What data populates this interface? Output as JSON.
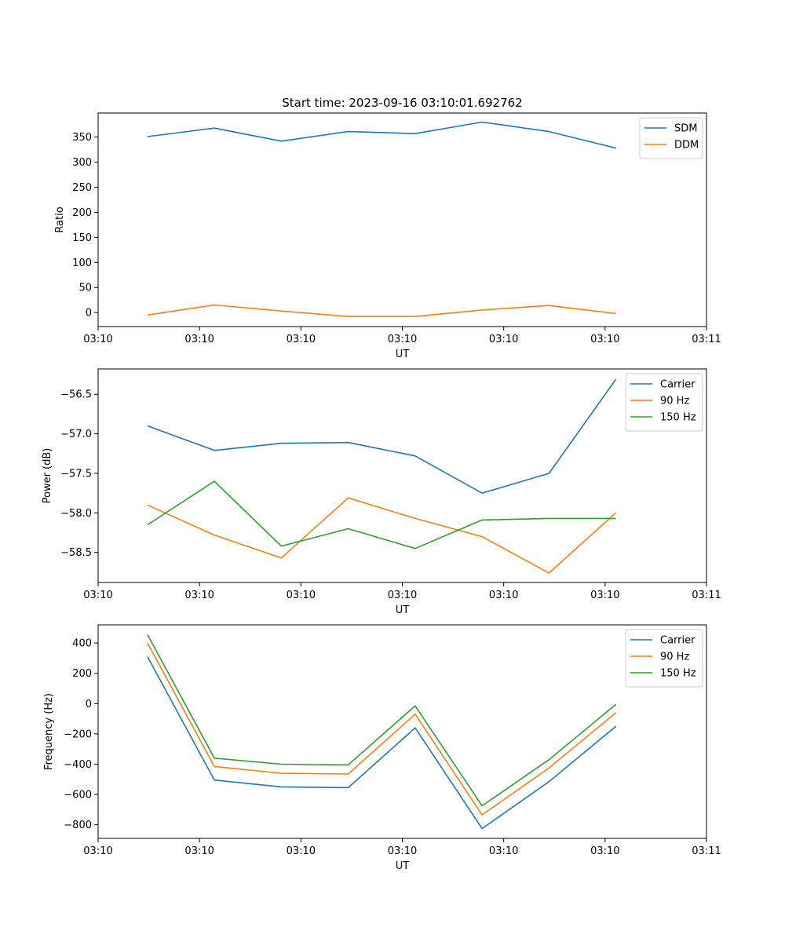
{
  "title": "Start time: 2023-09-16 03:10:01.692762",
  "colors": {
    "blue": "#1f77b4",
    "orange": "#ff7f0e",
    "green": "#2ca02c"
  },
  "chart_data": [
    {
      "type": "line",
      "name": "ratio",
      "title": "Start time: 2023-09-16 03:10:01.692762",
      "xlabel": "UT",
      "ylabel": "Ratio",
      "xlim": [
        0,
        9
      ],
      "xticks": [
        0,
        1.5,
        3,
        4.5,
        6,
        7.5,
        9
      ],
      "xtick_labels": [
        "03:10",
        "03:10",
        "03:10",
        "03:10",
        "03:10",
        "03:10",
        "03:11"
      ],
      "ylim": [
        -28,
        398
      ],
      "yticks": [
        0,
        50,
        100,
        150,
        200,
        250,
        300,
        350
      ],
      "ytick_labels": [
        "0",
        "50",
        "100",
        "150",
        "200",
        "250",
        "300",
        "350"
      ],
      "x": [
        0.73,
        1.72,
        2.71,
        3.7,
        4.69,
        5.68,
        6.67,
        7.66
      ],
      "legend_position": "top-right",
      "series": [
        {
          "name": "SDM",
          "color": "#1f77b4",
          "values": [
            351,
            368,
            342,
            361,
            357,
            380,
            361,
            328
          ]
        },
        {
          "name": "DDM",
          "color": "#ff7f0e",
          "values": [
            -5,
            15,
            3,
            -8,
            -8,
            5,
            14,
            -2
          ]
        }
      ]
    },
    {
      "type": "line",
      "name": "power",
      "xlabel": "UT",
      "ylabel": "Power (dB)",
      "xlim": [
        0,
        9
      ],
      "xticks": [
        0,
        1.5,
        3,
        4.5,
        6,
        7.5,
        9
      ],
      "xtick_labels": [
        "03:10",
        "03:10",
        "03:10",
        "03:10",
        "03:10",
        "03:10",
        "03:11"
      ],
      "ylim": [
        -58.88,
        -56.18
      ],
      "yticks": [
        -58.5,
        -58.0,
        -57.5,
        -57.0,
        -56.5
      ],
      "ytick_labels": [
        "−58.5",
        "−58.0",
        "−57.5",
        "−57.0",
        "−56.5"
      ],
      "x": [
        0.73,
        1.72,
        2.71,
        3.7,
        4.69,
        5.68,
        6.67,
        7.66
      ],
      "legend_position": "top-right",
      "series": [
        {
          "name": "Carrier",
          "color": "#1f77b4",
          "values": [
            -56.9,
            -57.21,
            -57.12,
            -57.11,
            -57.28,
            -57.75,
            -57.5,
            -56.31
          ]
        },
        {
          "name": "90 Hz",
          "color": "#ff7f0e",
          "values": [
            -57.9,
            -58.28,
            -58.57,
            -57.81,
            -58.07,
            -58.3,
            -58.76,
            -58.0
          ]
        },
        {
          "name": "150 Hz",
          "color": "#2ca02c",
          "values": [
            -58.15,
            -57.6,
            -58.42,
            -58.2,
            -58.45,
            -58.09,
            -58.07,
            -58.07
          ]
        }
      ]
    },
    {
      "type": "line",
      "name": "frequency",
      "xlabel": "UT",
      "ylabel": "Frequency (Hz)",
      "xlim": [
        0,
        9
      ],
      "xticks": [
        0,
        1.5,
        3,
        4.5,
        6,
        7.5,
        9
      ],
      "xtick_labels": [
        "03:10",
        "03:10",
        "03:10",
        "03:10",
        "03:10",
        "03:10",
        "03:11"
      ],
      "ylim": [
        -890,
        520
      ],
      "yticks": [
        -800,
        -600,
        -400,
        -200,
        0,
        200,
        400
      ],
      "ytick_labels": [
        "−800",
        "−600",
        "−400",
        "−200",
        "0",
        "200",
        "400"
      ],
      "x": [
        0.73,
        1.72,
        2.71,
        3.7,
        4.69,
        5.68,
        6.67,
        7.66
      ],
      "legend_position": "top-right",
      "series": [
        {
          "name": "Carrier",
          "color": "#1f77b4",
          "values": [
            310,
            -505,
            -550,
            -555,
            -160,
            -825,
            -515,
            -150
          ]
        },
        {
          "name": "90 Hz",
          "color": "#ff7f0e",
          "values": [
            400,
            -415,
            -460,
            -465,
            -70,
            -735,
            -425,
            -60
          ]
        },
        {
          "name": "150 Hz",
          "color": "#2ca02c",
          "values": [
            455,
            -360,
            -400,
            -405,
            -15,
            -675,
            -370,
            -5
          ]
        }
      ]
    }
  ]
}
